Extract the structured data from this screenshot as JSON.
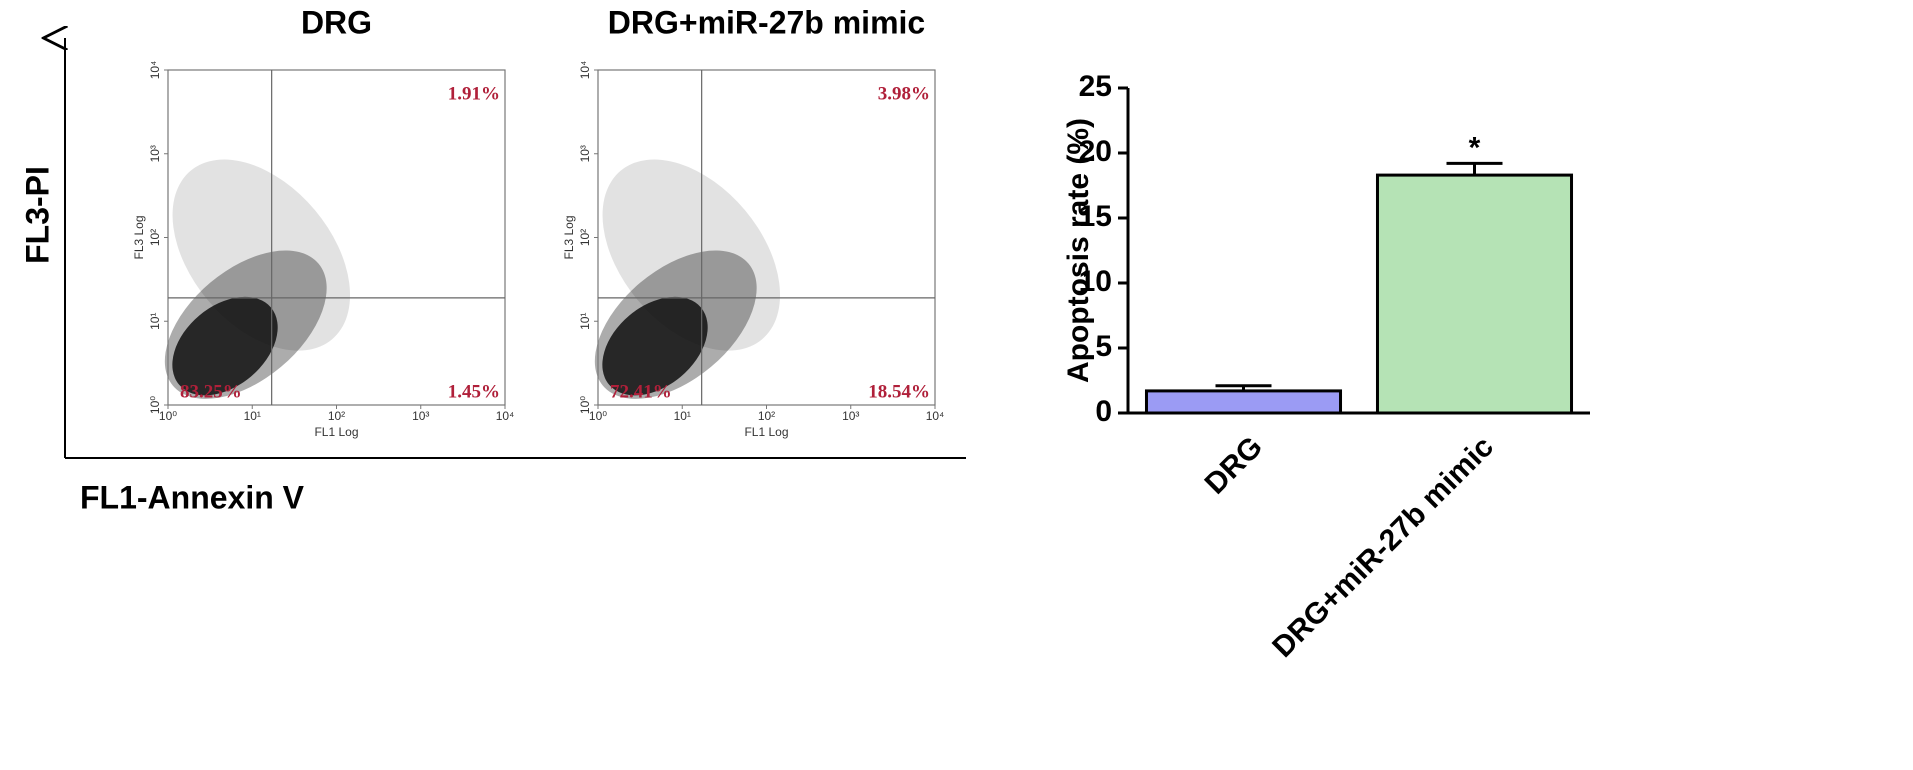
{
  "figure": {
    "y_label": "FL3-PI",
    "x_label": "FL1-Annexin V"
  },
  "chart_data": [
    {
      "type": "flow",
      "title": "DRG",
      "xlabel": "FL1 Log",
      "ylabel": "FL3 Log",
      "log_scale": true,
      "xlim": [
        1,
        10000
      ],
      "ylim": [
        1,
        10000
      ],
      "xticks": [
        {
          "value": 1,
          "label": "10⁰"
        },
        {
          "value": 10,
          "label": "10¹"
        },
        {
          "value": 100,
          "label": "10²"
        },
        {
          "value": 1000,
          "label": "10³"
        },
        {
          "value": 10000,
          "label": "10⁴"
        }
      ],
      "yticks": [
        {
          "value": 1,
          "label": "10⁰"
        },
        {
          "value": 10,
          "label": "10¹"
        },
        {
          "value": 100,
          "label": "10²"
        },
        {
          "value": 1000,
          "label": "10³"
        },
        {
          "value": 10000,
          "label": "10⁴"
        }
      ],
      "gate": {
        "x": 17,
        "y": 19
      },
      "values": [
        1.91,
        83.25,
        1.45
      ],
      "value_labels": [
        "1.91%",
        "83.25%",
        "1.45%"
      ],
      "label_color": "#b0203a"
    },
    {
      "type": "flow",
      "title": "DRG+miR-27b mimic",
      "xlabel": "FL1 Log",
      "ylabel": "FL3 Log",
      "log_scale": true,
      "xlim": [
        1,
        10000
      ],
      "ylim": [
        1,
        10000
      ],
      "xticks": [
        {
          "value": 1,
          "label": "10⁰"
        },
        {
          "value": 10,
          "label": "10¹"
        },
        {
          "value": 100,
          "label": "10²"
        },
        {
          "value": 1000,
          "label": "10³"
        },
        {
          "value": 10000,
          "label": "10⁴"
        }
      ],
      "yticks": [
        {
          "value": 1,
          "label": "10⁰"
        },
        {
          "value": 10,
          "label": "10¹"
        },
        {
          "value": 100,
          "label": "10²"
        },
        {
          "value": 1000,
          "label": "10³"
        },
        {
          "value": 10000,
          "label": "10⁴"
        }
      ],
      "gate": {
        "x": 17,
        "y": 19
      },
      "values": [
        3.98,
        72.41,
        18.54
      ],
      "value_labels": [
        "3.98%",
        "72.41%",
        "18.54%"
      ],
      "label_color": "#b0203a"
    },
    {
      "type": "bar",
      "ylabel": "Apoptosis rate (%)",
      "categories": [
        "DRG",
        "DRG+miR-27b mimic"
      ],
      "values": [
        1.7,
        18.3
      ],
      "errors": [
        0.4,
        0.9
      ],
      "colors": [
        "#9b9bf4",
        "#b5e3b5"
      ],
      "annotations": [
        null,
        "*"
      ],
      "ylim": [
        0,
        25
      ],
      "yticks": [
        0,
        5,
        10,
        15,
        20,
        25
      ]
    }
  ]
}
